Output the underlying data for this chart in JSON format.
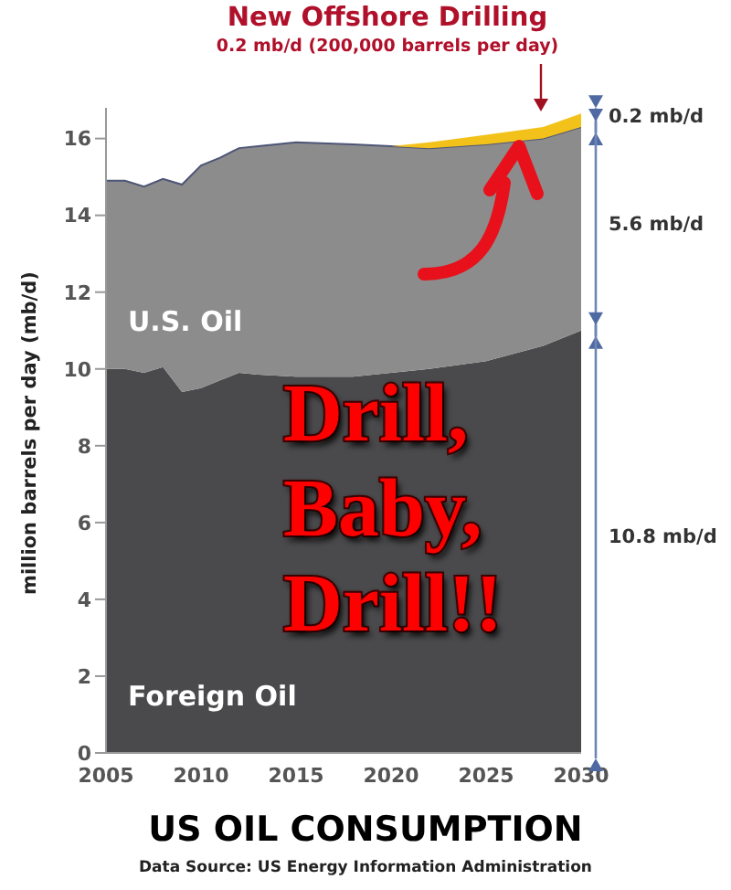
{
  "chart_data": {
    "type": "area",
    "stacked": true,
    "title": "US OIL CONSUMPTION",
    "ylabel": "million barrels per day (mb/d)",
    "x": [
      2005,
      2006,
      2007,
      2008,
      2009,
      2010,
      2011,
      2012,
      2013,
      2015,
      2018,
      2020,
      2022,
      2025,
      2028,
      2030
    ],
    "series": [
      {
        "name": "Foreign Oil",
        "color": "#4a4a4c",
        "values": [
          10.0,
          10.0,
          9.9,
          10.05,
          9.4,
          9.5,
          9.7,
          9.9,
          9.85,
          9.8,
          9.8,
          9.9,
          10.0,
          10.2,
          10.6,
          11.0
        ]
      },
      {
        "name": "U.S. Oil",
        "color": "#8c8c8c",
        "values": [
          4.9,
          4.9,
          4.85,
          4.9,
          5.4,
          5.8,
          5.8,
          5.85,
          5.95,
          6.1,
          6.05,
          5.9,
          5.75,
          5.65,
          5.4,
          5.3
        ]
      },
      {
        "name": "New Offshore Drilling",
        "color": "#f2c21a",
        "values": [
          null,
          null,
          null,
          null,
          null,
          null,
          null,
          null,
          null,
          null,
          null,
          0,
          0.15,
          0.25,
          0.3,
          0.35
        ]
      }
    ],
    "xlim": [
      2005,
      2030
    ],
    "xticks": [
      2005,
      2010,
      2015,
      2020,
      2025,
      2030
    ],
    "ylim": [
      0,
      16.8
    ],
    "yticks": [
      0,
      2,
      4,
      6,
      8,
      10,
      12,
      14,
      16
    ],
    "annotations": [
      "0.2 mb/d (200,000 barrels per day)",
      "Drill,\nBaby,\nDrill!!",
      "0.2 mb/d",
      "5.6 mb/d",
      "10.8 mb/d",
      "Data Source: US Energy Information Administration"
    ]
  }
}
